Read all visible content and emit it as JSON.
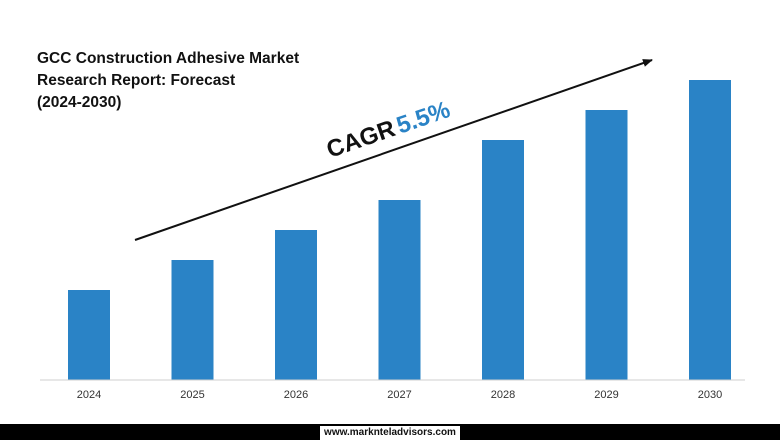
{
  "chart_data": {
    "type": "bar",
    "title": [
      "GCC Construction Adhesive Market",
      "Research Report: Forecast",
      "(2024-2030)"
    ],
    "categories": [
      "2024",
      "2025",
      "2026",
      "2027",
      "2028",
      "2029",
      "2030"
    ],
    "values": [
      30,
      40,
      50,
      60,
      80,
      90,
      100
    ],
    "ylim": [
      0,
      100
    ],
    "bar_color": "#2a83c6",
    "grid": false,
    "legend": "none",
    "annotation": {
      "label": "CAGR",
      "value": "5.5%",
      "value_color": "#2a83c6",
      "arrow": "up-right trend arrow above bars"
    }
  },
  "footer": {
    "url": "www.marknteladvisors.com"
  }
}
